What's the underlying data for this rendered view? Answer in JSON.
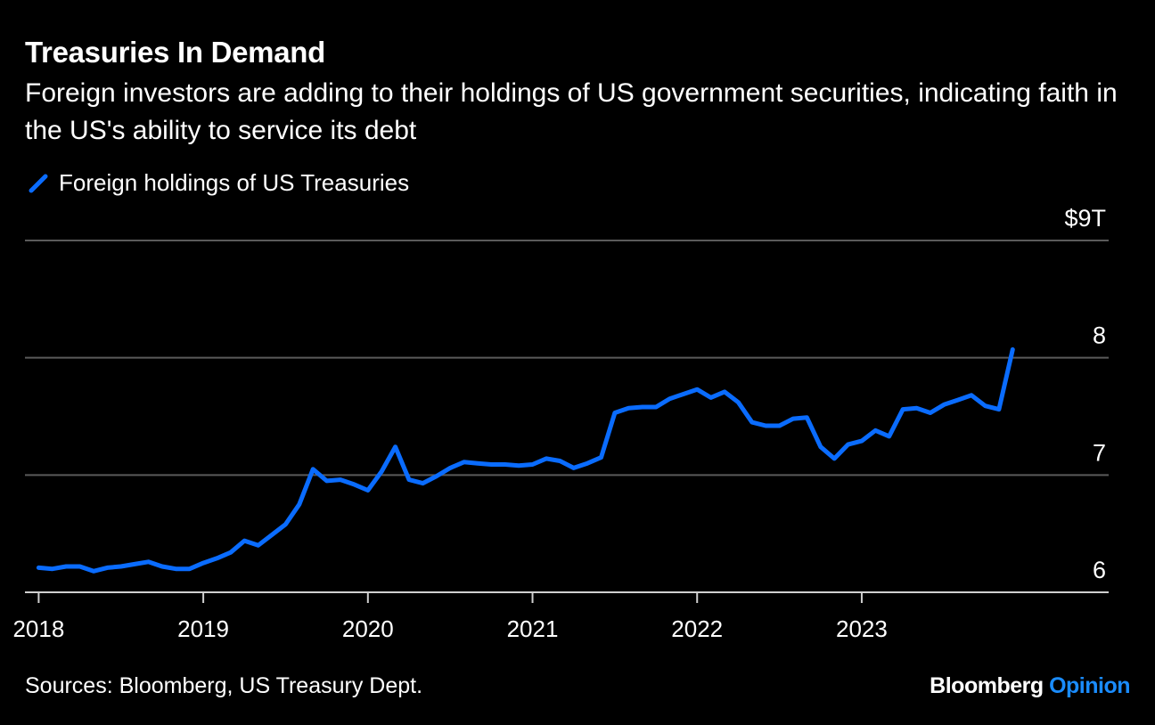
{
  "title": "Treasuries In Demand",
  "subtitle": "Foreign investors are adding to their holdings of US government securities, indicating faith in the US's ability to service its debt",
  "source": "Sources: Bloomberg, US Treasury Dept.",
  "brand": {
    "name": "Bloomberg",
    "product": "Opinion"
  },
  "colors": {
    "line": "#0a6cff",
    "grid": "#5a5a5a",
    "axis": "#cfcfcf",
    "background": "#000000"
  },
  "chart_data": {
    "type": "line",
    "title": "Treasuries In Demand",
    "unit_label": "$9T",
    "legend_position": "top-left",
    "grid": true,
    "ylim": [
      6,
      9
    ],
    "xlim": [
      "2017-12",
      "2024-07"
    ],
    "y_ticks": [
      {
        "value": 9,
        "label": "$9T"
      },
      {
        "value": 8,
        "label": "8"
      },
      {
        "value": 7,
        "label": "7"
      },
      {
        "value": 6,
        "label": "6"
      }
    ],
    "x_ticks": [
      {
        "date": "2018-01",
        "label": "2018"
      },
      {
        "date": "2019-01",
        "label": "2019"
      },
      {
        "date": "2020-01",
        "label": "2020"
      },
      {
        "date": "2021-01",
        "label": "2021"
      },
      {
        "date": "2022-01",
        "label": "2022"
      },
      {
        "date": "2023-01",
        "label": "2023"
      }
    ],
    "series": [
      {
        "name": "Foreign holdings of US Treasuries",
        "x": [
          "2018-01",
          "2018-02",
          "2018-03",
          "2018-04",
          "2018-05",
          "2018-06",
          "2018-07",
          "2018-08",
          "2018-09",
          "2018-10",
          "2018-11",
          "2018-12",
          "2019-01",
          "2019-02",
          "2019-03",
          "2019-04",
          "2019-05",
          "2019-06",
          "2019-07",
          "2019-08",
          "2019-09",
          "2019-10",
          "2019-11",
          "2019-12",
          "2020-01",
          "2020-02",
          "2020-03",
          "2020-04",
          "2020-05",
          "2020-06",
          "2020-07",
          "2020-08",
          "2020-09",
          "2020-10",
          "2020-11",
          "2020-12",
          "2021-01",
          "2021-02",
          "2021-03",
          "2021-04",
          "2021-05",
          "2021-06",
          "2021-07",
          "2021-08",
          "2021-09",
          "2021-10",
          "2021-11",
          "2021-12",
          "2022-01",
          "2022-02",
          "2022-03",
          "2022-04",
          "2022-05",
          "2022-06",
          "2022-07",
          "2022-08",
          "2022-09",
          "2022-10",
          "2022-11",
          "2022-12",
          "2023-01",
          "2023-02",
          "2023-03",
          "2023-04",
          "2023-05",
          "2023-06",
          "2023-07",
          "2023-08",
          "2023-09",
          "2023-10",
          "2023-11",
          "2023-12"
        ],
        "values": [
          6.21,
          6.2,
          6.22,
          6.22,
          6.18,
          6.21,
          6.22,
          6.24,
          6.26,
          6.22,
          6.2,
          6.2,
          6.25,
          6.29,
          6.34,
          6.44,
          6.4,
          6.49,
          6.58,
          6.75,
          7.05,
          6.95,
          6.96,
          6.92,
          6.87,
          7.03,
          7.24,
          6.96,
          6.93,
          6.99,
          7.06,
          7.11,
          7.1,
          7.09,
          7.09,
          7.08,
          7.09,
          7.14,
          7.12,
          7.06,
          7.1,
          7.15,
          7.53,
          7.57,
          7.58,
          7.58,
          7.65,
          7.69,
          7.73,
          7.66,
          7.71,
          7.62,
          7.45,
          7.42,
          7.42,
          7.48,
          7.49,
          7.24,
          7.14,
          7.26,
          7.29,
          7.38,
          7.33,
          7.56,
          7.57,
          7.53,
          7.6,
          7.64,
          7.68,
          7.59,
          7.56,
          8.07
        ]
      }
    ]
  }
}
